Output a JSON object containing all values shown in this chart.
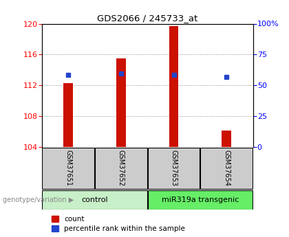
{
  "title": "GDS2066 / 245733_at",
  "samples": [
    "GSM37651",
    "GSM37652",
    "GSM37653",
    "GSM37654"
  ],
  "groups": [
    "control",
    "control",
    "miR319a transgenic",
    "miR319a transgenic"
  ],
  "group_labels": [
    "control",
    "miR319a transgenic"
  ],
  "group_colors": [
    "#c8f0c8",
    "#66ee66"
  ],
  "bar_bottom": 104,
  "count_values": [
    112.3,
    115.5,
    119.7,
    106.1
  ],
  "percentile_values": [
    113.4,
    113.5,
    113.4,
    113.1
  ],
  "ylim_left": [
    104,
    120
  ],
  "ylim_right": [
    0,
    100
  ],
  "yticks_left": [
    104,
    108,
    112,
    116,
    120
  ],
  "yticks_right": [
    0,
    25,
    50,
    75,
    100
  ],
  "ytick_labels_right": [
    "0",
    "25",
    "50",
    "75",
    "100%"
  ],
  "bar_color": "#cc1100",
  "dot_color": "#2244cc",
  "bar_width": 0.18,
  "legend_count_label": "count",
  "legend_pct_label": "percentile rank within the sample",
  "genotype_label": "genotype/variation",
  "grid_color": "#888888",
  "background_color": "#ffffff",
  "sample_box_color": "#cccccc",
  "font_size": 8
}
